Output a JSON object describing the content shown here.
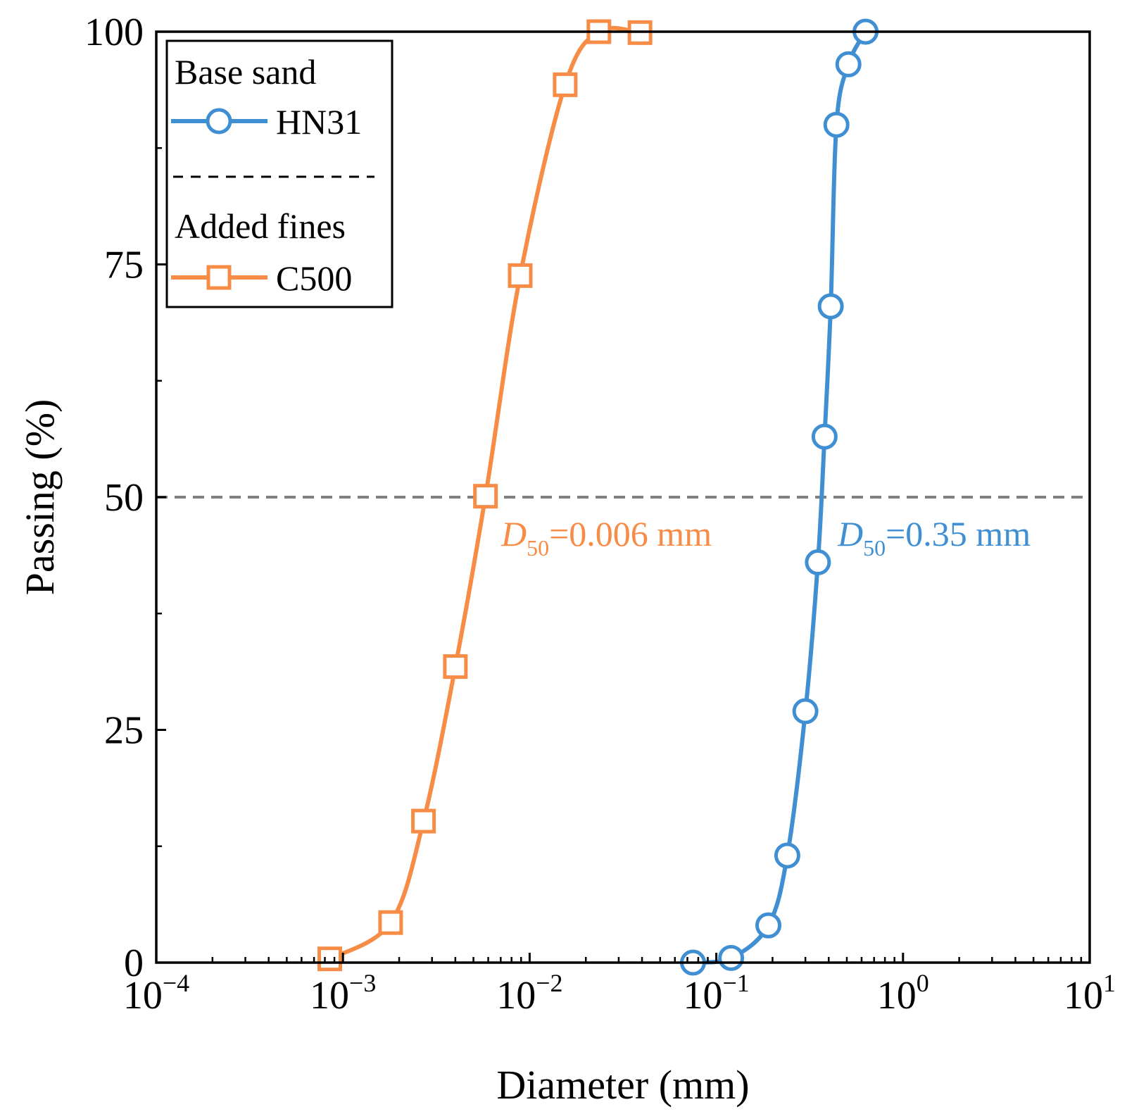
{
  "chart_data": {
    "type": "line",
    "xlabel": "Diameter (mm)",
    "ylabel": "Passing (%)",
    "xscale": "log",
    "xlim": [
      0.0001,
      10
    ],
    "ylim": [
      0,
      100
    ],
    "x_ticks": [
      {
        "base": "10",
        "exp": "−4",
        "value": 0.0001
      },
      {
        "base": "10",
        "exp": "−3",
        "value": 0.001
      },
      {
        "base": "10",
        "exp": "−2",
        "value": 0.01
      },
      {
        "base": "10",
        "exp": "−1",
        "value": 0.1
      },
      {
        "base": "10",
        "exp": "0",
        "value": 1
      },
      {
        "base": "10",
        "exp": "1",
        "value": 10
      }
    ],
    "y_ticks": [
      "0",
      "25",
      "50",
      "75",
      "100"
    ],
    "reference_line": {
      "y": 50,
      "style": "dashed",
      "color": "#808080"
    },
    "series": [
      {
        "name": "HN31",
        "group": "Base sand",
        "color": "#3f8fd2",
        "marker": "circle",
        "x": [
          0.075,
          0.12,
          0.19,
          0.24,
          0.3,
          0.35,
          0.38,
          0.41,
          0.44,
          0.51,
          0.63
        ],
        "y": [
          0,
          0.5,
          4,
          11.5,
          27,
          43,
          56.5,
          70.5,
          90,
          96.5,
          100
        ]
      },
      {
        "name": "C500",
        "group": "Added fines",
        "color": "#f78c47",
        "marker": "square",
        "x": [
          0.00085,
          0.0018,
          0.0027,
          0.004,
          0.0058,
          0.0089,
          0.0155,
          0.0235,
          0.039
        ],
        "y": [
          0.4,
          4.3,
          15.2,
          31.8,
          50.1,
          73.8,
          94.3,
          100,
          99.9
        ]
      }
    ],
    "annotations": [
      {
        "series": "C500",
        "sym": "D",
        "sub": "50",
        "text": "=0.006 mm",
        "color": "#f78c47"
      },
      {
        "series": "HN31",
        "sym": "D",
        "sub": "50",
        "text": "=0.35 mm",
        "color": "#3f8fd2"
      }
    ],
    "legend": {
      "position": "top-left",
      "headers": [
        "Base sand",
        "Added fines"
      ],
      "entries": [
        "HN31",
        "C500"
      ]
    }
  }
}
